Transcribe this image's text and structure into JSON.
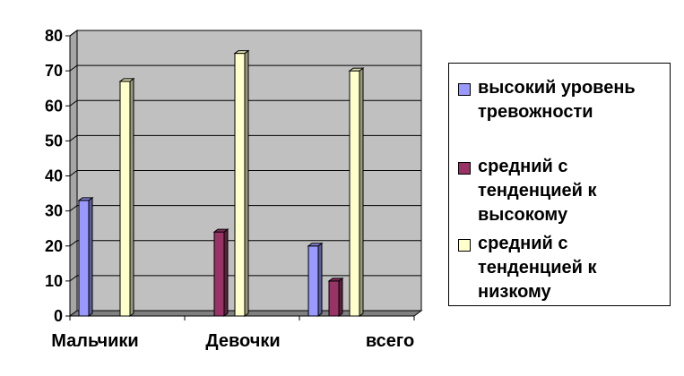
{
  "chart_data": {
    "type": "bar",
    "categories": [
      "Мальчики",
      "Девочки",
      "всего"
    ],
    "series": [
      {
        "name": "высокий уровень тревожности",
        "values": [
          33,
          0,
          20
        ],
        "color": "#9999ff"
      },
      {
        "name": "средний с тенденцией к высокому",
        "values": [
          0,
          24,
          10
        ],
        "color": "#993366"
      },
      {
        "name": "средний с тенденцией к низкому",
        "values": [
          67,
          75,
          70
        ],
        "color": "#ffffcc"
      }
    ],
    "ylim": [
      0,
      80
    ],
    "yticks": [
      "0",
      "10",
      "20",
      "30",
      "40",
      "50",
      "60",
      "70",
      "80"
    ],
    "grid": true,
    "legend_position": "right",
    "plot_background": "#c0c0c0"
  }
}
